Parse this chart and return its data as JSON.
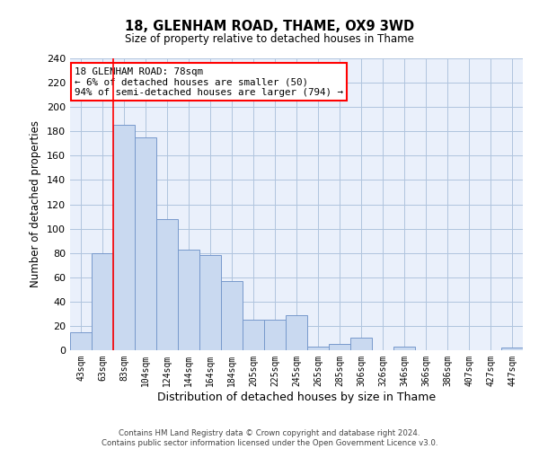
{
  "title1": "18, GLENHAM ROAD, THAME, OX9 3WD",
  "title2": "Size of property relative to detached houses in Thame",
  "xlabel": "Distribution of detached houses by size in Thame",
  "ylabel": "Number of detached properties",
  "bin_labels": [
    "43sqm",
    "63sqm",
    "83sqm",
    "104sqm",
    "124sqm",
    "144sqm",
    "164sqm",
    "184sqm",
    "205sqm",
    "225sqm",
    "245sqm",
    "265sqm",
    "285sqm",
    "306sqm",
    "326sqm",
    "346sqm",
    "366sqm",
    "386sqm",
    "407sqm",
    "427sqm",
    "447sqm"
  ],
  "bar_values": [
    15,
    80,
    185,
    175,
    108,
    83,
    78,
    57,
    25,
    25,
    29,
    3,
    5,
    10,
    0,
    3,
    0,
    0,
    0,
    0,
    2
  ],
  "bar_color": "#c9d9f0",
  "bar_edge_color": "#7799cc",
  "ylim": [
    0,
    240
  ],
  "yticks": [
    0,
    20,
    40,
    60,
    80,
    100,
    120,
    140,
    160,
    180,
    200,
    220,
    240
  ],
  "red_line_index": 1.5,
  "annotation_line1": "18 GLENHAM ROAD: 78sqm",
  "annotation_line2": "← 6% of detached houses are smaller (50)",
  "annotation_line3": "94% of semi-detached houses are larger (794) →",
  "annotation_box_color": "white",
  "annotation_box_edge": "red",
  "footer1": "Contains HM Land Registry data © Crown copyright and database right 2024.",
  "footer2": "Contains public sector information licensed under the Open Government Licence v3.0.",
  "background_color": "#eaf0fb",
  "grid_color": "#b0c4de"
}
